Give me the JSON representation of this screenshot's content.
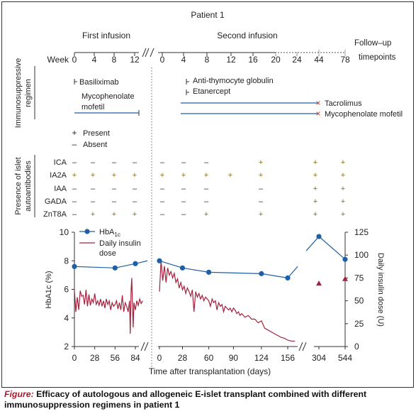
{
  "header": {
    "patient": "Patient 1",
    "first_infusion": "First infusion",
    "second_infusion": "Second infusion",
    "followup_line1": "Follow–up",
    "followup_line2": "timepoints",
    "week_label": "Week",
    "ticks_first": [
      "0",
      "4",
      "8",
      "12"
    ],
    "ticks_second": [
      "0",
      "4",
      "8",
      "12",
      "16",
      "20",
      "24"
    ],
    "ticks_followup": [
      "44",
      "78"
    ]
  },
  "immuno": {
    "section_label_line1": "Immunosuppressive",
    "section_label_line2": "regimen",
    "basiliximab": "Basiliximab",
    "mmf_first_line1": "Mycophenolate",
    "mmf_first_line2": "mofetil",
    "atg": "Anti-thymocyte globulin",
    "etanercept": "Etanercept",
    "tacrolimus": "Tacrolimus",
    "mmf_second": "Mycophenolate mofetil",
    "stop_marker": "×"
  },
  "legend_presence": {
    "plus_symbol": "+",
    "present": "Present",
    "minus_symbol": "–",
    "absent": "Absent"
  },
  "autoantibodies": {
    "section_label_line1": "Presence of islet",
    "section_label_line2": "autoantibodies",
    "rows": [
      {
        "name": "ICA",
        "marks": [
          "–",
          "–",
          "–",
          "–",
          "–",
          "–",
          "–",
          "–",
          "+",
          "+",
          "+"
        ]
      },
      {
        "name": "IA2A",
        "marks": [
          "+",
          "+",
          "+",
          "+",
          "+",
          "+",
          "+",
          "+",
          "+",
          "+",
          "+"
        ]
      },
      {
        "name": "IAA",
        "marks": [
          "–",
          "–",
          "–",
          "–",
          "–",
          "–",
          "–",
          "–",
          "–",
          "+",
          "+"
        ]
      },
      {
        "name": "GADA",
        "marks": [
          "–",
          "–",
          "–",
          "–",
          "–",
          "–",
          "–",
          "–",
          "–",
          "+",
          "+"
        ]
      },
      {
        "name": "ZnT8A",
        "marks": [
          "–",
          "+",
          "+",
          "+",
          "–",
          "–",
          "+",
          "–",
          "+",
          "+",
          "+"
        ]
      }
    ]
  },
  "chart_data": {
    "type": "line",
    "xlabel": "Time after transplantation (days)",
    "ylabel_left": "HbA1c (%)",
    "ylabel_right": "Daily insulin dose (U)",
    "ylim_left": [
      2,
      10
    ],
    "ylim_right": [
      0,
      125
    ],
    "yticks_left": [
      "2",
      "4",
      "6",
      "8",
      "10"
    ],
    "yticks_right": [
      "0",
      "25",
      "50",
      "75",
      "100",
      "125"
    ],
    "xticks_first": [
      "0",
      "28",
      "56",
      "84"
    ],
    "xticks_second": [
      "0",
      "28",
      "60",
      "90",
      "124",
      "156"
    ],
    "xticks_followup": [
      "304",
      "544"
    ],
    "legend": [
      {
        "label": "HbA",
        "sub": "1c",
        "color": "#1f5fa6"
      },
      {
        "label_line1": "Daily insulin",
        "label_line2": "dose",
        "color": "#a3213d"
      }
    ],
    "series": [
      {
        "name": "HbA1c",
        "axis": "left",
        "color": "#1f5fa6",
        "points": [
          {
            "seg": "first",
            "day": 0,
            "value": 7.6
          },
          {
            "seg": "first",
            "day": 56,
            "value": 7.5
          },
          {
            "seg": "first",
            "day": 84,
            "value": 7.8
          },
          {
            "seg": "second",
            "day": 0,
            "value": 8.0
          },
          {
            "seg": "second",
            "day": 28,
            "value": 7.5
          },
          {
            "seg": "second",
            "day": 60,
            "value": 7.2
          },
          {
            "seg": "second",
            "day": 124,
            "value": 7.1
          },
          {
            "seg": "second",
            "day": 156,
            "value": 6.8
          },
          {
            "seg": "followup",
            "day": 304,
            "value": 9.7
          },
          {
            "seg": "followup",
            "day": 544,
            "value": 8.1
          }
        ]
      },
      {
        "name": "Daily insulin dose",
        "axis": "right",
        "color": "#a3213d",
        "first": [
          [
            0,
            62
          ],
          [
            2,
            38
          ],
          [
            4,
            54
          ],
          [
            6,
            40
          ],
          [
            8,
            61
          ],
          [
            10,
            55
          ],
          [
            12,
            56
          ],
          [
            14,
            46
          ],
          [
            16,
            62
          ],
          [
            18,
            44
          ],
          [
            20,
            57
          ],
          [
            22,
            45
          ],
          [
            24,
            52
          ],
          [
            26,
            48
          ],
          [
            28,
            58
          ],
          [
            30,
            46
          ],
          [
            32,
            50
          ],
          [
            34,
            45
          ],
          [
            36,
            52
          ],
          [
            38,
            44
          ],
          [
            40,
            50
          ],
          [
            42,
            42
          ],
          [
            44,
            52
          ],
          [
            46,
            46
          ],
          [
            48,
            50
          ],
          [
            50,
            40
          ],
          [
            52,
            48
          ],
          [
            54,
            44
          ],
          [
            56,
            46
          ],
          [
            58,
            50
          ],
          [
            60,
            41
          ],
          [
            62,
            48
          ],
          [
            64,
            40
          ],
          [
            66,
            56
          ],
          [
            68,
            38
          ],
          [
            70,
            48
          ],
          [
            72,
            44
          ],
          [
            74,
            38
          ],
          [
            76,
            50
          ],
          [
            77,
            14
          ],
          [
            78,
            60
          ],
          [
            79,
            75
          ],
          [
            80,
            48
          ],
          [
            81,
            21
          ],
          [
            82,
            48
          ],
          [
            84,
            40
          ],
          [
            86,
            50
          ],
          [
            88,
            45
          ],
          [
            90,
            52
          ],
          [
            92,
            47
          ],
          [
            94,
            50
          ]
        ],
        "second": [
          [
            0,
            60
          ],
          [
            2,
            94
          ],
          [
            4,
            72
          ],
          [
            6,
            88
          ],
          [
            8,
            70
          ],
          [
            10,
            86
          ],
          [
            12,
            78
          ],
          [
            14,
            82
          ],
          [
            16,
            75
          ],
          [
            18,
            80
          ],
          [
            20,
            70
          ],
          [
            22,
            74
          ],
          [
            24,
            64
          ],
          [
            26,
            70
          ],
          [
            28,
            62
          ],
          [
            30,
            66
          ],
          [
            32,
            58
          ],
          [
            34,
            64
          ],
          [
            36,
            60
          ],
          [
            38,
            55
          ],
          [
            40,
            62
          ],
          [
            42,
            38
          ],
          [
            44,
            60
          ],
          [
            46,
            54
          ],
          [
            48,
            58
          ],
          [
            50,
            52
          ],
          [
            52,
            56
          ],
          [
            54,
            50
          ],
          [
            56,
            54
          ],
          [
            58,
            52
          ],
          [
            60,
            50
          ],
          [
            62,
            44
          ],
          [
            64,
            52
          ],
          [
            66,
            48
          ],
          [
            68,
            50
          ],
          [
            70,
            40
          ],
          [
            72,
            48
          ],
          [
            74,
            44
          ],
          [
            76,
            46
          ],
          [
            78,
            38
          ],
          [
            80,
            44
          ],
          [
            82,
            42
          ],
          [
            84,
            40
          ],
          [
            86,
            42
          ],
          [
            88,
            38
          ],
          [
            90,
            42
          ],
          [
            92,
            40
          ],
          [
            94,
            36
          ],
          [
            96,
            38
          ],
          [
            98,
            34
          ],
          [
            100,
            36
          ],
          [
            104,
            32
          ],
          [
            108,
            34
          ],
          [
            112,
            30
          ],
          [
            116,
            30
          ],
          [
            120,
            26
          ],
          [
            124,
            28
          ],
          [
            128,
            20
          ],
          [
            132,
            18
          ],
          [
            136,
            16
          ],
          [
            140,
            14
          ],
          [
            144,
            12
          ],
          [
            148,
            10
          ],
          [
            152,
            9
          ],
          [
            156,
            7
          ],
          [
            160,
            6
          ],
          [
            165,
            6
          ]
        ]
      },
      {
        "name": "Daily insulin dose (follow-up)",
        "axis": "right",
        "color": "#a3213d",
        "marker": "triangle",
        "points": [
          {
            "seg": "followup",
            "day": 304,
            "value": 69
          },
          {
            "seg": "followup",
            "day": 544,
            "value": 74
          }
        ]
      }
    ],
    "break_mark": "//"
  },
  "caption": {
    "lead": "Figure:",
    "text": " Efficacy of autologous and allogeneic E-islet transplant combined with different immunosuppression regimens in patient 1"
  }
}
